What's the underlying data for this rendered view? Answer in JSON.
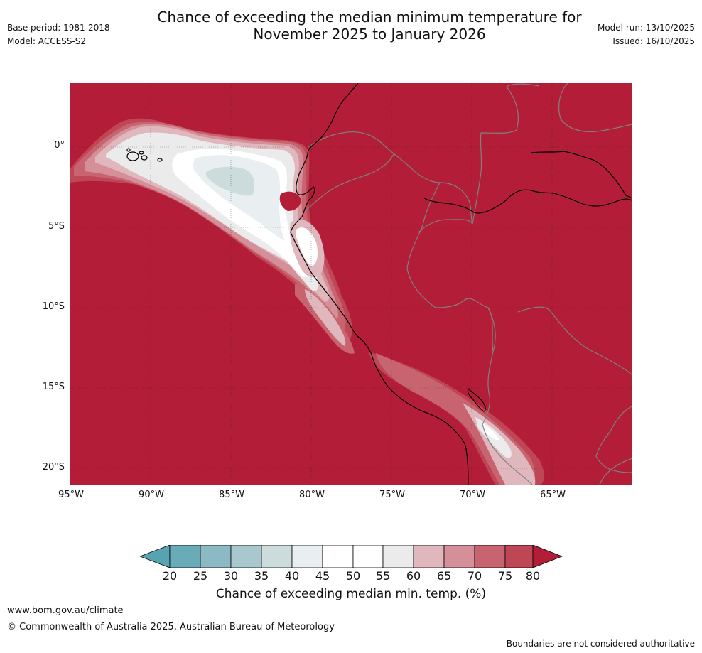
{
  "header": {
    "title_line1": "Chance of exceeding the median minimum temperature for",
    "title_line2": "November 2025 to January 2026",
    "base_period": "Base period: 1981-2018",
    "model": "Model: ACCESS-S2",
    "model_run": "Model run: 13/10/2025",
    "issued": "Issued: 16/10/2025"
  },
  "map": {
    "latitude_labels": [
      "0°",
      "5°S",
      "10°S",
      "15°S",
      "20°S"
    ],
    "longitude_labels": [
      "95°W",
      "90°W",
      "85°W",
      "80°W",
      "75°W",
      "70°W",
      "65°W"
    ],
    "colors": {
      "c20": "#58a3b2",
      "c25": "#6aabb8",
      "c30": "#8bbac5",
      "c35": "#a8c8cd",
      "c40": "#ccdbdc",
      "c45": "#e9eff1",
      "c50": "#ffffff",
      "c55": "#ffffff",
      "c60": "#ebebeb",
      "c65": "#dfb7bc",
      "c70": "#d48f98",
      "c75": "#c86470",
      "c80": "#bf4655",
      "over": "#b31d37",
      "coast": "#000000",
      "border": "#808080"
    }
  },
  "colorbar": {
    "labels": [
      "20",
      "25",
      "30",
      "35",
      "40",
      "45",
      "50",
      "55",
      "60",
      "65",
      "70",
      "75",
      "80"
    ],
    "title": "Chance of exceeding median min. temp. (%)"
  },
  "footer": {
    "website": "www.bom.gov.au/climate",
    "copyright": "© Commonwealth of Australia 2025, Australian Bureau of Meteorology",
    "disclaimer": "Boundaries are not considered authoritative"
  }
}
